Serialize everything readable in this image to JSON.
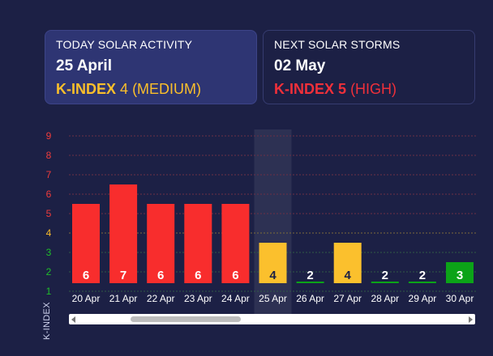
{
  "today": {
    "title": "TODAY SOLAR ACTIVITY",
    "date": "25 April",
    "index_label": "K-INDEX",
    "index_value": "4",
    "level": "(MEDIUM)",
    "color": "#fbbf2b"
  },
  "next": {
    "title": "NEXT SOLAR STORMS",
    "date": "02 May",
    "index_label": "K-INDEX",
    "index_value": "5",
    "level": "(HIGH)",
    "color": "#f0303a"
  },
  "chart_data": {
    "type": "bar",
    "categories": [
      "20 Apr",
      "21 Apr",
      "22 Apr",
      "23 Apr",
      "24 Apr",
      "25 Apr",
      "26 Apr",
      "27 Apr",
      "28 Apr",
      "29 Apr",
      "30 Apr"
    ],
    "values": [
      6,
      7,
      6,
      6,
      6,
      4,
      2,
      4,
      2,
      2,
      3
    ],
    "yticks": [
      1,
      2,
      3,
      4,
      5,
      6,
      7,
      8,
      9
    ],
    "ylim": [
      1,
      9
    ],
    "ylabel": "K-INDEX",
    "highlighted_category": "25 Apr",
    "colors": {
      "high": "#f82d2d",
      "medium": "#fbc02d",
      "low": "#0ca318",
      "tick_high": "#ef3b3b",
      "tick_medium": "#f6b92b",
      "tick_low": "#1fbf2a",
      "gridline_high": "#6b2f45",
      "gridline_medium": "#7b6a3a",
      "gridline_low": "#2f5a45"
    }
  }
}
